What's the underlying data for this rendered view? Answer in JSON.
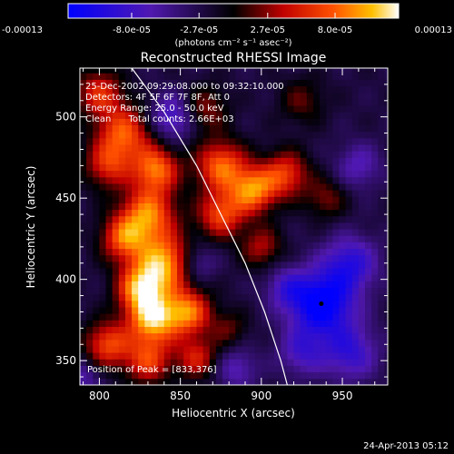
{
  "chart_data": {
    "type": "heatmap",
    "title": "Reconstructed RHESSI Image",
    "xlabel": "Heliocentric X (arcsec)",
    "ylabel": "Heliocentric Y (arcsec)",
    "xlim": [
      788,
      978
    ],
    "ylim": [
      335,
      530
    ],
    "xticks": [
      800,
      850,
      900,
      950
    ],
    "yticks": [
      350,
      400,
      450,
      500
    ],
    "colorbar": {
      "range": [
        -0.00013,
        0.00013
      ],
      "tick_labels": [
        "-0.00013",
        "-8.0e-05",
        "-2.7e-05",
        "2.7e-05",
        "8.0e-05",
        "0.00013"
      ],
      "tick_values": [
        -0.00013,
        -8e-05,
        -2.7e-05,
        2.7e-05,
        8e-05,
        0.00013
      ],
      "unit_label": "(photons cm⁻² s⁻¹ asec⁻²)"
    },
    "annotations": [
      "25-Dec-2002 09:29:08.000 to 09:32:10.000",
      "Detectors: 4F 5F 6F 7F 8F, Att 0",
      "Energy Range: 25.0 - 50.0 keV",
      "Clean      Total counts: 2.66E+03"
    ],
    "peak": {
      "label": "Position of Peak = [833,376]",
      "x": 833,
      "y": 376
    },
    "min_marker": {
      "x": 937,
      "y": 385
    },
    "limb": [
      [
        820,
        530
      ],
      [
        840,
        503
      ],
      [
        860,
        470
      ],
      [
        875,
        440
      ],
      [
        890,
        410
      ],
      [
        902,
        380
      ],
      [
        912,
        350
      ],
      [
        916,
        335
      ]
    ],
    "blobs": [
      {
        "x": 800,
        "y": 515,
        "v": 0.6,
        "s": 10
      },
      {
        "x": 815,
        "y": 490,
        "v": 0.75,
        "s": 12
      },
      {
        "x": 805,
        "y": 470,
        "v": 0.55,
        "s": 10
      },
      {
        "x": 835,
        "y": 468,
        "v": 0.8,
        "s": 10
      },
      {
        "x": 830,
        "y": 440,
        "v": 0.85,
        "s": 12
      },
      {
        "x": 815,
        "y": 425,
        "v": 0.7,
        "s": 10
      },
      {
        "x": 840,
        "y": 410,
        "v": 0.95,
        "s": 12
      },
      {
        "x": 825,
        "y": 395,
        "v": 0.85,
        "s": 10
      },
      {
        "x": 833,
        "y": 376,
        "v": 1.0,
        "s": 11
      },
      {
        "x": 855,
        "y": 380,
        "v": 0.8,
        "s": 10
      },
      {
        "x": 805,
        "y": 360,
        "v": 0.7,
        "s": 10
      },
      {
        "x": 830,
        "y": 350,
        "v": 0.65,
        "s": 10
      },
      {
        "x": 860,
        "y": 352,
        "v": 0.55,
        "s": 9
      },
      {
        "x": 875,
        "y": 470,
        "v": 0.8,
        "s": 11
      },
      {
        "x": 895,
        "y": 455,
        "v": 0.85,
        "s": 10
      },
      {
        "x": 875,
        "y": 440,
        "v": 0.7,
        "s": 10
      },
      {
        "x": 915,
        "y": 465,
        "v": 0.65,
        "s": 10
      },
      {
        "x": 865,
        "y": 505,
        "v": 0.4,
        "s": 10
      },
      {
        "x": 900,
        "y": 420,
        "v": 0.45,
        "s": 9
      },
      {
        "x": 940,
        "y": 450,
        "v": 0.35,
        "s": 9
      },
      {
        "x": 925,
        "y": 510,
        "v": 0.3,
        "s": 10
      },
      {
        "x": 880,
        "y": 370,
        "v": 0.3,
        "s": 8
      },
      {
        "x": 860,
        "y": 410,
        "v": -0.35,
        "s": 8
      },
      {
        "x": 845,
        "y": 500,
        "v": -0.5,
        "s": 10
      },
      {
        "x": 937,
        "y": 385,
        "v": -0.9,
        "s": 14
      },
      {
        "x": 955,
        "y": 410,
        "v": -0.55,
        "s": 12
      },
      {
        "x": 955,
        "y": 355,
        "v": -0.5,
        "s": 12
      },
      {
        "x": 925,
        "y": 355,
        "v": -0.4,
        "s": 10
      },
      {
        "x": 915,
        "y": 395,
        "v": -0.35,
        "s": 9
      },
      {
        "x": 790,
        "y": 340,
        "v": -0.3,
        "s": 8
      },
      {
        "x": 885,
        "y": 345,
        "v": -0.35,
        "s": 9
      },
      {
        "x": 960,
        "y": 470,
        "v": -0.35,
        "s": 10
      }
    ]
  },
  "footer": {
    "date": "24-Apr-2013 05:12"
  }
}
